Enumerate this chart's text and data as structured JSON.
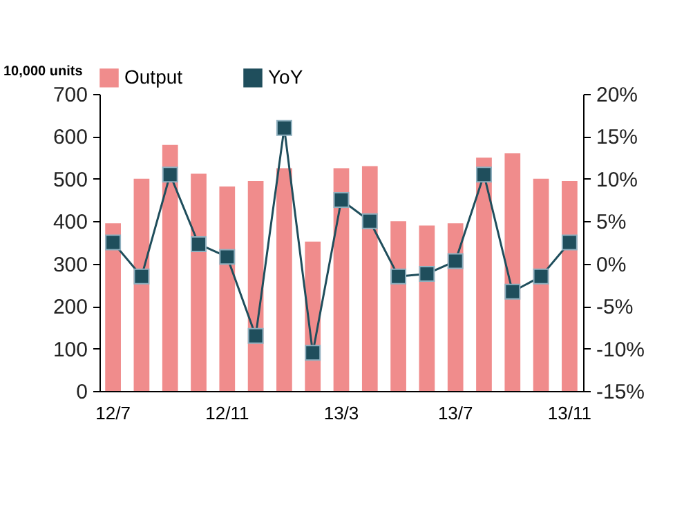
{
  "chart_data": {
    "type": "bar",
    "ylabel": "10,000 units",
    "categories": [
      "12/7",
      null,
      null,
      null,
      "12/11",
      null,
      null,
      null,
      "13/3",
      null,
      null,
      null,
      "13/7",
      null,
      null,
      null,
      "13/11"
    ],
    "series": [
      {
        "name": "Output",
        "color": "#f08c8c",
        "values": [
          395,
          500,
          580,
          512,
          482,
          495,
          525,
          352,
          525,
          530,
          400,
          390,
          395,
          550,
          560,
          500,
          495
        ]
      },
      {
        "name": "YoY",
        "type": "line",
        "axis": "y2",
        "color": "#1f4e5c",
        "values": [
          2.5,
          -1.5,
          10.5,
          2.3,
          0.8,
          -8.5,
          16,
          -10.5,
          7.5,
          5,
          -1.5,
          -1.2,
          0.3,
          10.5,
          -3.3,
          -1.5,
          2.5
        ]
      }
    ],
    "ylim": [
      0,
      700
    ],
    "yticks": [
      0,
      100,
      200,
      300,
      400,
      500,
      600,
      700
    ],
    "y2lim": [
      -15,
      20
    ],
    "y2ticks": [
      {
        "value": -15,
        "label": "-15%"
      },
      {
        "value": -10,
        "label": "-10%"
      },
      {
        "value": -5,
        "label": "-5%"
      },
      {
        "value": 0,
        "label": "0%"
      },
      {
        "value": 5,
        "label": "5%"
      },
      {
        "value": 10,
        "label": "10%"
      },
      {
        "value": 15,
        "label": "15%"
      },
      {
        "value": 20,
        "label": "20%"
      }
    ],
    "marker": "square",
    "legend": "top",
    "grid": false
  }
}
